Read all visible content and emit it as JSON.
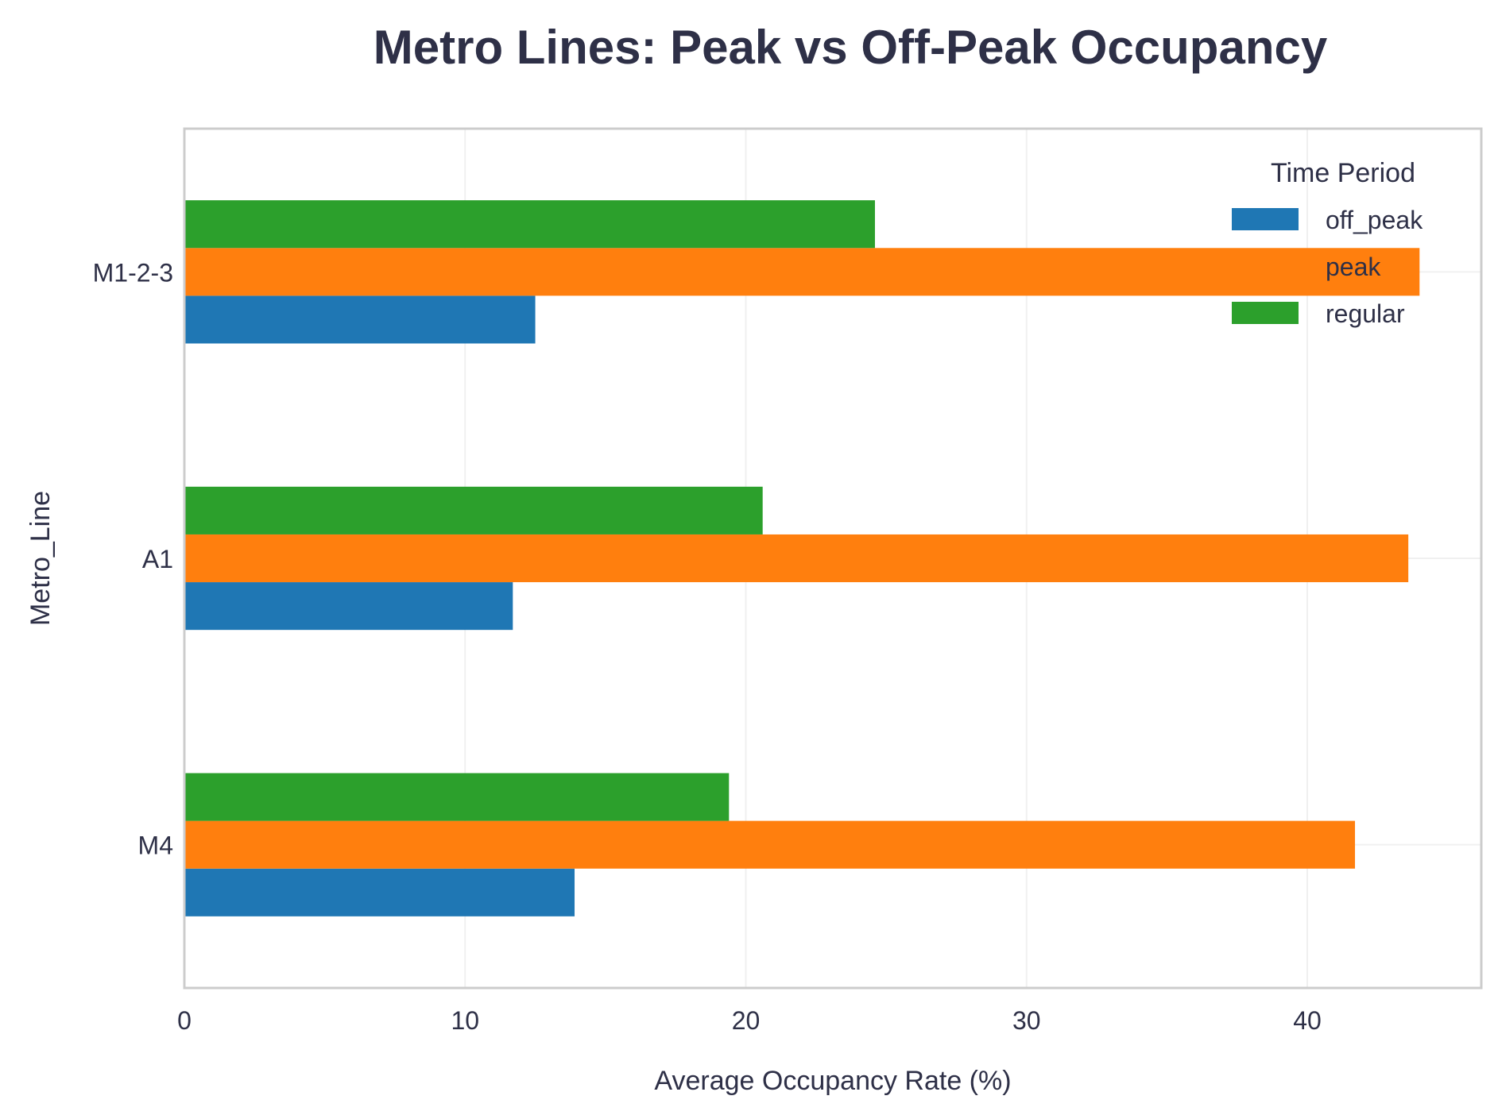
{
  "chart_data": {
    "type": "bar",
    "orientation": "horizontal",
    "title": "Metro Lines: Peak vs Off-Peak Occupancy",
    "xlabel": "Average Occupancy Rate (%)",
    "ylabel": "Metro_Line",
    "categories": [
      "M1-2-3",
      "A1",
      "M4"
    ],
    "xlim": [
      0,
      46.2
    ],
    "xticks": [
      0,
      10,
      20,
      30,
      40
    ],
    "grid": true,
    "legend": {
      "title": "Time Period",
      "position": "top-right"
    },
    "series": [
      {
        "name": "off_peak",
        "color": "#1f77b4",
        "values": [
          12.5,
          11.7,
          13.9
        ]
      },
      {
        "name": "peak",
        "color": "#ff7f0e",
        "values": [
          44.0,
          43.6,
          41.7
        ]
      },
      {
        "name": "regular",
        "color": "#2ca02c",
        "values": [
          24.6,
          20.6,
          19.4
        ]
      }
    ]
  }
}
